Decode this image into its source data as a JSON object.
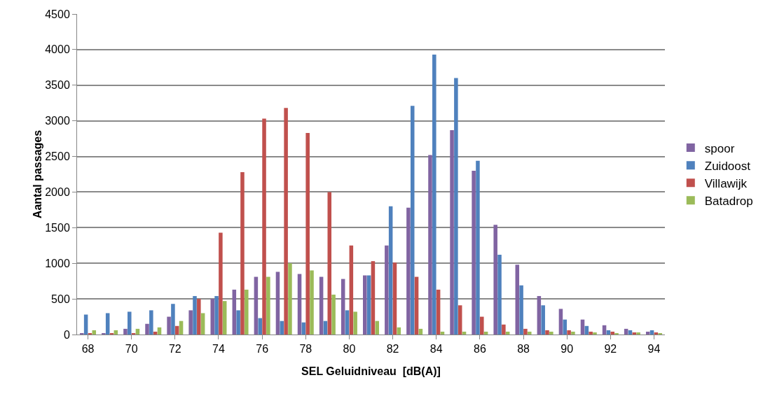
{
  "chart_data": {
    "type": "bar",
    "xlabel": "SEL Geluidniveau  [dB(A)]",
    "ylabel": "Aantal passages",
    "categories": [
      "68",
      null,
      "70",
      null,
      "72",
      null,
      "74",
      null,
      "76",
      null,
      "78",
      null,
      "80",
      null,
      "82",
      null,
      "84",
      null,
      "86",
      null,
      "88",
      null,
      "90",
      null,
      "92",
      null,
      "94"
    ],
    "series": [
      {
        "name": "spoor",
        "color": "#8064a2",
        "values": [
          20,
          20,
          80,
          150,
          250,
          340,
          500,
          630,
          810,
          880,
          850,
          810,
          780,
          830,
          1250,
          1780,
          2520,
          2870,
          2300,
          1540,
          980,
          540,
          360,
          210,
          130,
          80,
          40
        ]
      },
      {
        "name": "Zuidoost",
        "color": "#4f81bd",
        "values": [
          280,
          300,
          320,
          340,
          430,
          540,
          540,
          340,
          230,
          190,
          170,
          190,
          340,
          830,
          1800,
          3210,
          3930,
          3600,
          2440,
          1120,
          690,
          410,
          210,
          120,
          60,
          60,
          60
        ]
      },
      {
        "name": "Villawijk",
        "color": "#c0504d",
        "values": [
          20,
          20,
          20,
          40,
          120,
          500,
          1430,
          2280,
          3030,
          3180,
          2830,
          2000,
          1250,
          1030,
          1010,
          810,
          630,
          410,
          250,
          140,
          80,
          60,
          60,
          40,
          40,
          30,
          30
        ]
      },
      {
        "name": "Batadrop",
        "color": "#9bbb59",
        "values": [
          60,
          60,
          80,
          100,
          190,
          300,
          470,
          630,
          810,
          1000,
          900,
          560,
          320,
          190,
          100,
          80,
          40,
          40,
          40,
          40,
          40,
          40,
          40,
          30,
          20,
          30,
          20
        ]
      }
    ],
    "ylim": [
      0,
      4500
    ],
    "yticks": [
      0,
      500,
      1000,
      1500,
      2000,
      2500,
      3000,
      3500,
      4000,
      4500
    ],
    "grid": "y",
    "legend": "right"
  }
}
